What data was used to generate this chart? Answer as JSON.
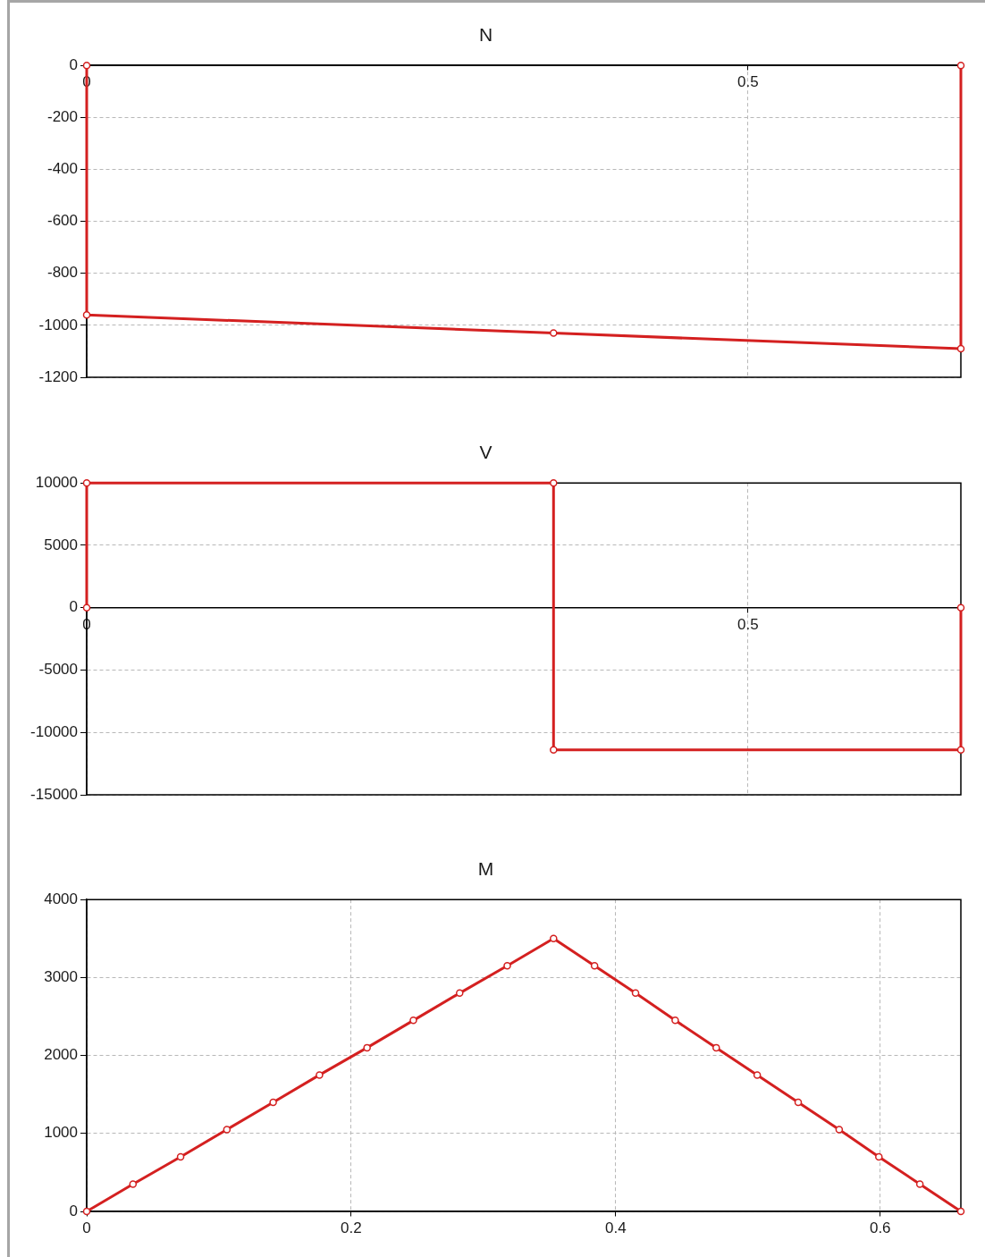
{
  "chart_data": [
    {
      "type": "line",
      "title": "N",
      "x": [
        0,
        0,
        0.353,
        0.661,
        0.661
      ],
      "values": [
        0,
        -960,
        -1030,
        -1090,
        0
      ],
      "color": "#d42020",
      "marker": "circle",
      "xlim": [
        0,
        0.661
      ],
      "xticks": [
        0,
        0.5
      ],
      "ylim": [
        -1200,
        0
      ],
      "yticks": [
        -1200,
        -1000,
        -800,
        -600,
        -400,
        -200,
        0
      ],
      "grid": true
    },
    {
      "type": "line",
      "title": "V",
      "x": [
        0,
        0,
        0.353,
        0.353,
        0.661,
        0.661
      ],
      "values": [
        0,
        10000,
        10000,
        -11400,
        -11400,
        0
      ],
      "color": "#d42020",
      "marker": "circle",
      "xlim": [
        0,
        0.661
      ],
      "xticks": [
        0,
        0.5
      ],
      "ylim": [
        -15000,
        10000
      ],
      "yticks": [
        -15000,
        -10000,
        -5000,
        0,
        5000,
        10000
      ],
      "grid": true
    },
    {
      "type": "line",
      "title": "M",
      "x": [
        0,
        0.035,
        0.071,
        0.106,
        0.141,
        0.176,
        0.212,
        0.247,
        0.282,
        0.318,
        0.353,
        0.384,
        0.415,
        0.445,
        0.476,
        0.507,
        0.538,
        0.569,
        0.599,
        0.63,
        0.661
      ],
      "values": [
        0,
        350,
        700,
        1050,
        1400,
        1750,
        2100,
        2450,
        2800,
        3150,
        3500,
        3150,
        2800,
        2450,
        2100,
        1750,
        1400,
        1050,
        700,
        350,
        0
      ],
      "color": "#d42020",
      "marker": "circle",
      "xlim": [
        0,
        0.661
      ],
      "xticks": [
        0,
        0.2,
        0.4,
        0.6
      ],
      "ylim": [
        0,
        4000
      ],
      "yticks": [
        0,
        1000,
        2000,
        3000,
        4000
      ],
      "grid": true
    }
  ]
}
